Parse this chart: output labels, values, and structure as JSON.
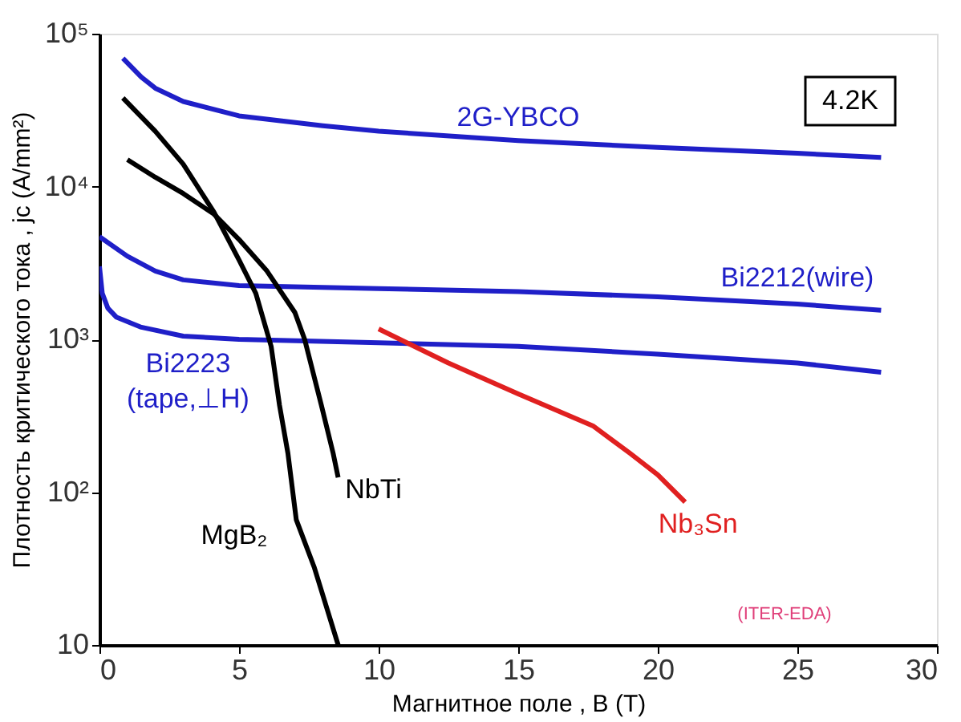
{
  "chart_data": {
    "type": "line",
    "xlabel": "Магнитное поле , B (T)",
    "ylabel": "Плотность критического тока , jc (A/mm²)",
    "xlim": [
      0,
      30
    ],
    "xticks": [
      0,
      5,
      10,
      15,
      20,
      25,
      30
    ],
    "ylim": [
      10,
      100000
    ],
    "log": "y",
    "yticks": [
      10,
      {
        "value": 100,
        "label": "10²"
      },
      {
        "value": 1000,
        "label": "10³"
      },
      {
        "value": 10000,
        "label": "10⁴"
      },
      {
        "value": 100000,
        "label": "10⁵"
      }
    ],
    "grid": false,
    "marker": "none",
    "line_style": "solid",
    "series": [
      {
        "name": "2G-YBCO",
        "color": "#1f1fc8",
        "x": [
          0.84,
          1.5,
          2,
          3,
          5,
          8,
          10,
          15,
          20,
          25,
          28
        ],
        "values": [
          69000,
          52000,
          44000,
          36000,
          29000,
          25000,
          23000,
          20000,
          18000,
          16500,
          15500
        ]
      },
      {
        "name": "Bi2212(wire)",
        "color": "#1f1fc8",
        "x": [
          0,
          1,
          2,
          3,
          5,
          10,
          15,
          20,
          25,
          28
        ],
        "values": [
          4700,
          3500,
          2800,
          2450,
          2250,
          2150,
          2050,
          1900,
          1700,
          1550
        ]
      },
      {
        "name": "Bi2223\n(tape,⊥H)",
        "color": "#1f1fc8",
        "x": [
          0,
          0.1,
          0.3,
          0.6,
          1.5,
          3,
          5,
          10,
          15,
          20,
          25,
          28
        ],
        "values": [
          3000,
          2000,
          1600,
          1400,
          1200,
          1050,
          1000,
          950,
          900,
          800,
          700,
          610
        ]
      },
      {
        "name": "NbTi",
        "color": "#000000",
        "x": [
          1,
          2,
          3,
          4.1,
          5,
          6,
          7,
          7.35,
          7.95,
          8.37,
          8.55
        ],
        "values": [
          15000,
          11500,
          9000,
          6600,
          4500,
          2800,
          1500,
          1000,
          370,
          180,
          125
        ]
      },
      {
        "name": "MgB₂",
        "color": "#000000",
        "x": [
          0.84,
          2,
          3,
          4.1,
          5,
          5.6,
          6.15,
          6.45,
          6.75,
          7.05,
          7.7,
          8.55
        ],
        "values": [
          38000,
          23000,
          14000,
          6800,
          3300,
          2000,
          900,
          370,
          180,
          66,
          32,
          10
        ]
      },
      {
        "name": "Nb₃Sn",
        "color": "#e02020",
        "x": [
          10,
          12.5,
          15,
          17.7,
          19,
          20,
          20.98
        ],
        "values": [
          1170,
          700,
          440,
          270,
          180,
          130,
          86
        ]
      }
    ],
    "annotations": [
      "4.2K",
      "(ITER-EDA)"
    ]
  }
}
